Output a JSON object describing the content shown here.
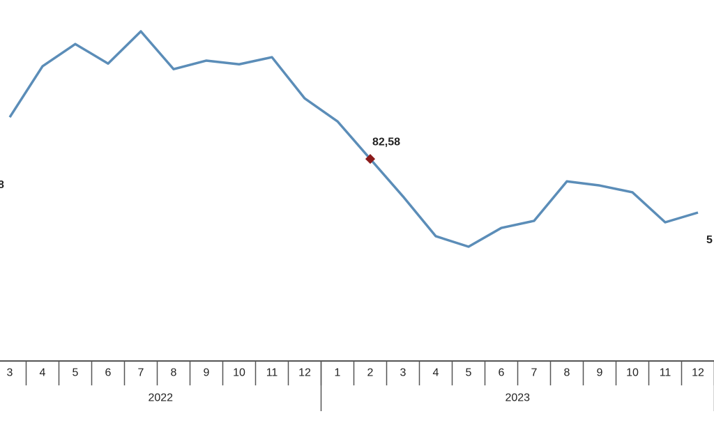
{
  "chart_data": {
    "type": "line",
    "categories": [
      "3",
      "4",
      "5",
      "6",
      "7",
      "8",
      "9",
      "10",
      "11",
      "12",
      "1",
      "2",
      "3",
      "4",
      "5",
      "6",
      "7",
      "8",
      "9",
      "10",
      "11",
      "12"
    ],
    "x_groups": [
      {
        "label": "2022",
        "span": 10
      },
      {
        "label": "2023",
        "span": 12
      }
    ],
    "series": [
      {
        "name": "",
        "color": "#5b8db8",
        "values": [
          99.7,
          120.6,
          129.7,
          121.7,
          134.9,
          119.4,
          122.9,
          121.4,
          124.3,
          107.4,
          98.0,
          82.58,
          67.2,
          50.9,
          46.6,
          54.3,
          57.2,
          73.4,
          71.7,
          68.9,
          56.6,
          60.6
        ],
        "value_labels": [
          null,
          null,
          null,
          null,
          null,
          null,
          null,
          null,
          null,
          null,
          null,
          "82,58",
          null,
          null,
          null,
          null,
          null,
          null,
          null,
          null,
          null,
          null
        ],
        "highlight": 11,
        "highlight_color": "#8b1a1a"
      }
    ],
    "annotations": [
      {
        "text": "8"
      },
      {
        "text": "5"
      }
    ]
  }
}
